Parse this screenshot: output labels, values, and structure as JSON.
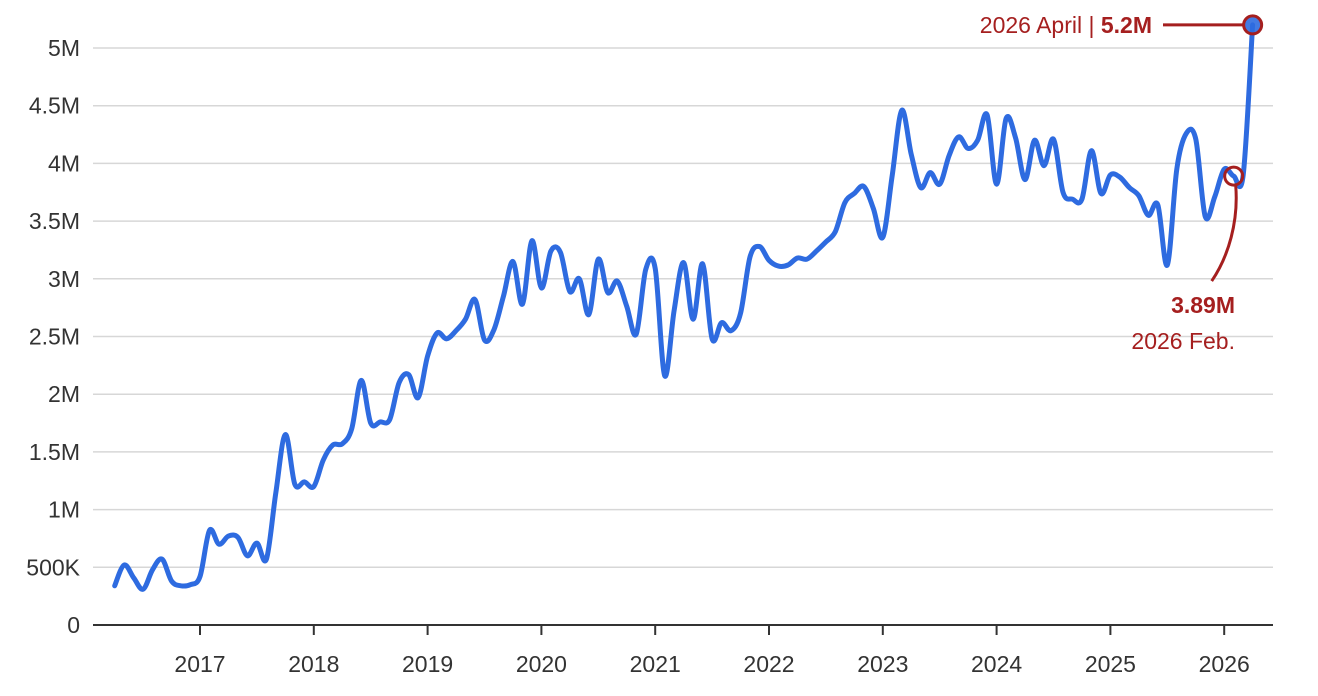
{
  "colors": {
    "line": "#2e6be0",
    "annotation": "#a51f1f",
    "grid": "#d7d7d7",
    "axis": "#333333",
    "text": "#333333"
  },
  "chart_data": {
    "type": "line",
    "title": "",
    "xlabel": "",
    "ylabel": "",
    "ylim": [
      0,
      5200000
    ],
    "y_ticks": [
      {
        "value": 0,
        "label": "0"
      },
      {
        "value": 500000,
        "label": "500K"
      },
      {
        "value": 1000000,
        "label": "1M"
      },
      {
        "value": 1500000,
        "label": "1.5M"
      },
      {
        "value": 2000000,
        "label": "2M"
      },
      {
        "value": 2500000,
        "label": "2.5M"
      },
      {
        "value": 3000000,
        "label": "3M"
      },
      {
        "value": 3500000,
        "label": "3.5M"
      },
      {
        "value": 4000000,
        "label": "4M"
      },
      {
        "value": 4500000,
        "label": "4.5M"
      },
      {
        "value": 5000000,
        "label": "5M"
      }
    ],
    "x_ticks": [
      {
        "value": "2017-01",
        "label": "2017"
      },
      {
        "value": "2018-01",
        "label": "2018"
      },
      {
        "value": "2019-01",
        "label": "2019"
      },
      {
        "value": "2020-01",
        "label": "2020"
      },
      {
        "value": "2021-01",
        "label": "2021"
      },
      {
        "value": "2022-01",
        "label": "2022"
      },
      {
        "value": "2023-01",
        "label": "2023"
      },
      {
        "value": "2024-01",
        "label": "2024"
      },
      {
        "value": "2025-01",
        "label": "2025"
      },
      {
        "value": "2026-01",
        "label": "2026"
      }
    ],
    "grid": true,
    "series": [
      {
        "points": [
          [
            "2016-04",
            340000
          ],
          [
            "2016-05",
            520000
          ],
          [
            "2016-06",
            410000
          ],
          [
            "2016-07",
            310000
          ],
          [
            "2016-08",
            480000
          ],
          [
            "2016-09",
            570000
          ],
          [
            "2016-10",
            380000
          ],
          [
            "2016-11",
            340000
          ],
          [
            "2016-12",
            350000
          ],
          [
            "2017-01",
            420000
          ],
          [
            "2017-02",
            820000
          ],
          [
            "2017-03",
            700000
          ],
          [
            "2017-04",
            770000
          ],
          [
            "2017-05",
            760000
          ],
          [
            "2017-06",
            600000
          ],
          [
            "2017-07",
            710000
          ],
          [
            "2017-08",
            570000
          ],
          [
            "2017-09",
            1150000
          ],
          [
            "2017-10",
            1650000
          ],
          [
            "2017-11",
            1220000
          ],
          [
            "2017-12",
            1240000
          ],
          [
            "2018-01",
            1200000
          ],
          [
            "2018-02",
            1430000
          ],
          [
            "2018-03",
            1560000
          ],
          [
            "2018-04",
            1570000
          ],
          [
            "2018-05",
            1700000
          ],
          [
            "2018-06",
            2120000
          ],
          [
            "2018-07",
            1750000
          ],
          [
            "2018-08",
            1760000
          ],
          [
            "2018-09",
            1780000
          ],
          [
            "2018-10",
            2100000
          ],
          [
            "2018-11",
            2170000
          ],
          [
            "2018-12",
            1970000
          ],
          [
            "2019-01",
            2330000
          ],
          [
            "2019-02",
            2530000
          ],
          [
            "2019-03",
            2480000
          ],
          [
            "2019-04",
            2550000
          ],
          [
            "2019-05",
            2650000
          ],
          [
            "2019-06",
            2820000
          ],
          [
            "2019-07",
            2470000
          ],
          [
            "2019-08",
            2560000
          ],
          [
            "2019-09",
            2850000
          ],
          [
            "2019-10",
            3150000
          ],
          [
            "2019-11",
            2780000
          ],
          [
            "2019-12",
            3330000
          ],
          [
            "2020-01",
            2920000
          ],
          [
            "2020-02",
            3240000
          ],
          [
            "2020-03",
            3230000
          ],
          [
            "2020-04",
            2890000
          ],
          [
            "2020-05",
            3000000
          ],
          [
            "2020-06",
            2690000
          ],
          [
            "2020-07",
            3170000
          ],
          [
            "2020-08",
            2880000
          ],
          [
            "2020-09",
            2980000
          ],
          [
            "2020-10",
            2760000
          ],
          [
            "2020-11",
            2520000
          ],
          [
            "2020-12",
            3080000
          ],
          [
            "2021-01",
            3090000
          ],
          [
            "2021-02",
            2160000
          ],
          [
            "2021-03",
            2730000
          ],
          [
            "2021-04",
            3140000
          ],
          [
            "2021-05",
            2650000
          ],
          [
            "2021-06",
            3130000
          ],
          [
            "2021-07",
            2480000
          ],
          [
            "2021-08",
            2620000
          ],
          [
            "2021-09",
            2550000
          ],
          [
            "2021-10",
            2700000
          ],
          [
            "2021-11",
            3190000
          ],
          [
            "2021-12",
            3280000
          ],
          [
            "2022-01",
            3160000
          ],
          [
            "2022-02",
            3110000
          ],
          [
            "2022-03",
            3120000
          ],
          [
            "2022-04",
            3180000
          ],
          [
            "2022-05",
            3170000
          ],
          [
            "2022-06",
            3240000
          ],
          [
            "2022-07",
            3320000
          ],
          [
            "2022-08",
            3410000
          ],
          [
            "2022-09",
            3660000
          ],
          [
            "2022-10",
            3740000
          ],
          [
            "2022-11",
            3800000
          ],
          [
            "2022-12",
            3610000
          ],
          [
            "2023-01",
            3360000
          ],
          [
            "2023-02",
            3900000
          ],
          [
            "2023-03",
            4460000
          ],
          [
            "2023-04",
            4080000
          ],
          [
            "2023-05",
            3790000
          ],
          [
            "2023-06",
            3920000
          ],
          [
            "2023-07",
            3820000
          ],
          [
            "2023-08",
            4070000
          ],
          [
            "2023-09",
            4230000
          ],
          [
            "2023-10",
            4130000
          ],
          [
            "2023-11",
            4200000
          ],
          [
            "2023-12",
            4420000
          ],
          [
            "2024-01",
            3820000
          ],
          [
            "2024-02",
            4390000
          ],
          [
            "2024-03",
            4220000
          ],
          [
            "2024-04",
            3860000
          ],
          [
            "2024-05",
            4200000
          ],
          [
            "2024-06",
            3980000
          ],
          [
            "2024-07",
            4210000
          ],
          [
            "2024-08",
            3750000
          ],
          [
            "2024-09",
            3690000
          ],
          [
            "2024-10",
            3690000
          ],
          [
            "2024-11",
            4110000
          ],
          [
            "2024-12",
            3740000
          ],
          [
            "2025-01",
            3900000
          ],
          [
            "2025-02",
            3880000
          ],
          [
            "2025-03",
            3790000
          ],
          [
            "2025-04",
            3720000
          ],
          [
            "2025-05",
            3550000
          ],
          [
            "2025-06",
            3640000
          ],
          [
            "2025-07",
            3120000
          ],
          [
            "2025-08",
            3950000
          ],
          [
            "2025-09",
            4260000
          ],
          [
            "2025-10",
            4210000
          ],
          [
            "2025-11",
            3540000
          ],
          [
            "2025-12",
            3710000
          ],
          [
            "2026-01",
            3950000
          ],
          [
            "2026-02",
            3890000
          ],
          [
            "2026-03",
            3900000
          ],
          [
            "2026-04",
            5200000
          ]
        ]
      }
    ],
    "annotations": [
      {
        "x": "2026-04",
        "y": 5200000,
        "prefix": "2026 April | ",
        "value_label": "5.2M"
      },
      {
        "x": "2026-02",
        "y": 3890000,
        "value_label": "3.89M",
        "date_label": "2026 Feb."
      }
    ]
  }
}
